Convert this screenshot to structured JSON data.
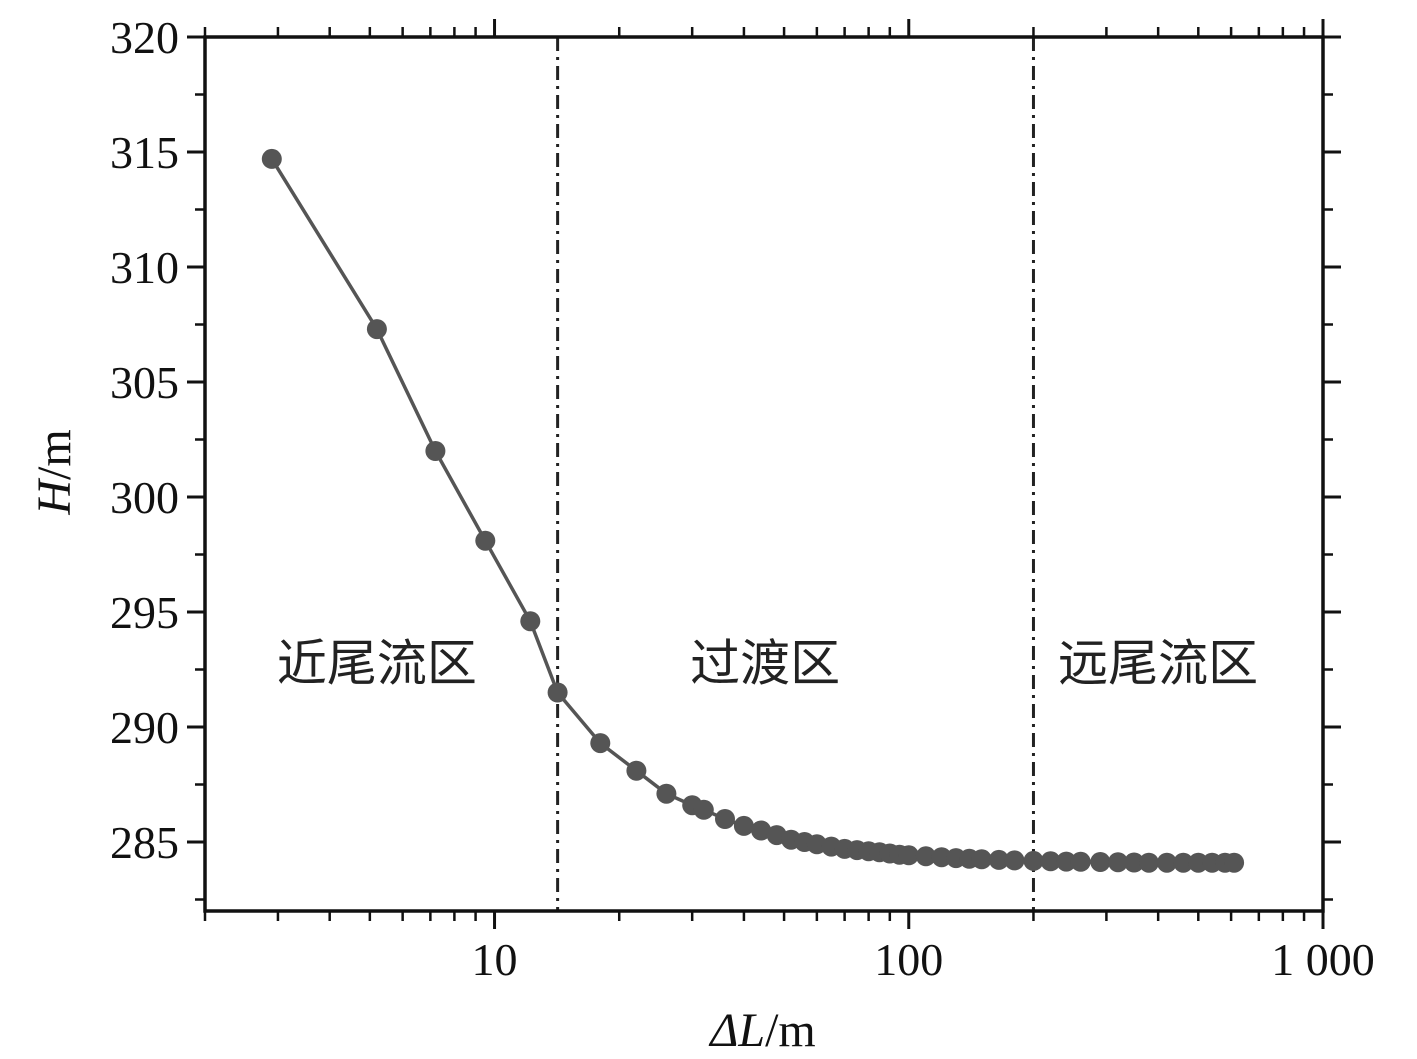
{
  "chart_data": {
    "type": "line",
    "title": "",
    "xscale": "log",
    "xlim": [
      2,
      1000
    ],
    "ylim": [
      282,
      320
    ],
    "x_ticks": [
      {
        "value": 10,
        "label": "10"
      },
      {
        "value": 100,
        "label": "100"
      },
      {
        "value": 1000,
        "label": "1 000"
      }
    ],
    "y_ticks": [
      {
        "value": 285,
        "label": "285"
      },
      {
        "value": 290,
        "label": "290"
      },
      {
        "value": 295,
        "label": "295"
      },
      {
        "value": 300,
        "label": "300"
      },
      {
        "value": 305,
        "label": "305"
      },
      {
        "value": 310,
        "label": "310"
      },
      {
        "value": 315,
        "label": "315"
      },
      {
        "value": 320,
        "label": "320"
      }
    ],
    "xlabel": {
      "italic": "ΔL",
      "unit": "/m"
    },
    "ylabel": {
      "italic": "H",
      "unit": "/m"
    },
    "grid": false,
    "line_color": "#555555",
    "marker_color": "#555555",
    "divider_color": "#222222",
    "dividers": [
      14.2,
      200
    ],
    "regions": [
      {
        "label": "近尾流区",
        "x": 5.2,
        "y": 292.8
      },
      {
        "label": "过渡区",
        "x": 45,
        "y": 292.8
      },
      {
        "label": "远尾流区",
        "x": 400,
        "y": 292.8
      }
    ],
    "series": [
      {
        "x": [
          2.9,
          5.2,
          7.2,
          9.5,
          12.2,
          14.2,
          18.0,
          22.0,
          26.0,
          30.0,
          32.0,
          36.0,
          40.0,
          44.0,
          48.0,
          52.0,
          56.0,
          60.0,
          65.0,
          70.0,
          75.0,
          80.0,
          85.0,
          90.0,
          95.0,
          100.0,
          110.0,
          120.0,
          130.0,
          140.0,
          150.0,
          165.0,
          180.0,
          200.0,
          220.0,
          240.0,
          260.0,
          290.0,
          320.0,
          350.0,
          380.0,
          420.0,
          460.0,
          500.0,
          540.0,
          580.0,
          610.0
        ],
        "y": [
          314.7,
          307.3,
          302.0,
          298.1,
          294.6,
          291.5,
          289.3,
          288.1,
          287.1,
          286.6,
          286.4,
          286.0,
          285.7,
          285.5,
          285.3,
          285.1,
          285.0,
          284.9,
          284.8,
          284.7,
          284.65,
          284.6,
          284.55,
          284.5,
          284.45,
          284.42,
          284.38,
          284.34,
          284.3,
          284.27,
          284.25,
          284.22,
          284.2,
          284.18,
          284.16,
          284.15,
          284.14,
          284.13,
          284.12,
          284.11,
          284.1,
          284.1,
          284.1,
          284.1,
          284.1,
          284.1,
          284.1
        ]
      }
    ]
  }
}
